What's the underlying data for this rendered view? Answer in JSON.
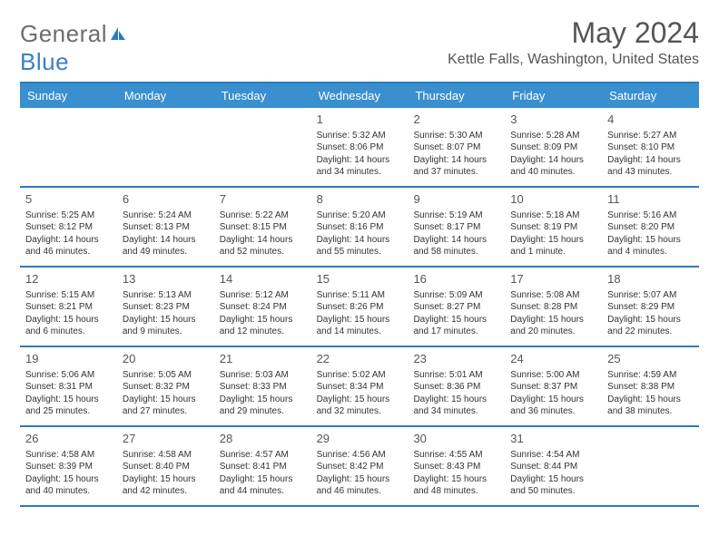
{
  "brand": {
    "part1": "General",
    "part2": "Blue"
  },
  "title": "May 2024",
  "location": "Kettle Falls, Washington, United States",
  "colors": {
    "header_bg": "#3a8fcf",
    "border": "#2b7cbd",
    "text": "#333333",
    "title_text": "#555555",
    "brand_grey": "#6e6e6e",
    "brand_blue": "#3a80c4",
    "page_bg": "#ffffff"
  },
  "day_headers": [
    "Sunday",
    "Monday",
    "Tuesday",
    "Wednesday",
    "Thursday",
    "Friday",
    "Saturday"
  ],
  "weeks": [
    [
      {},
      {},
      {},
      {
        "day": "1",
        "sunrise": "Sunrise: 5:32 AM",
        "sunset": "Sunset: 8:06 PM",
        "daylight1": "Daylight: 14 hours",
        "daylight2": "and 34 minutes."
      },
      {
        "day": "2",
        "sunrise": "Sunrise: 5:30 AM",
        "sunset": "Sunset: 8:07 PM",
        "daylight1": "Daylight: 14 hours",
        "daylight2": "and 37 minutes."
      },
      {
        "day": "3",
        "sunrise": "Sunrise: 5:28 AM",
        "sunset": "Sunset: 8:09 PM",
        "daylight1": "Daylight: 14 hours",
        "daylight2": "and 40 minutes."
      },
      {
        "day": "4",
        "sunrise": "Sunrise: 5:27 AM",
        "sunset": "Sunset: 8:10 PM",
        "daylight1": "Daylight: 14 hours",
        "daylight2": "and 43 minutes."
      }
    ],
    [
      {
        "day": "5",
        "sunrise": "Sunrise: 5:25 AM",
        "sunset": "Sunset: 8:12 PM",
        "daylight1": "Daylight: 14 hours",
        "daylight2": "and 46 minutes."
      },
      {
        "day": "6",
        "sunrise": "Sunrise: 5:24 AM",
        "sunset": "Sunset: 8:13 PM",
        "daylight1": "Daylight: 14 hours",
        "daylight2": "and 49 minutes."
      },
      {
        "day": "7",
        "sunrise": "Sunrise: 5:22 AM",
        "sunset": "Sunset: 8:15 PM",
        "daylight1": "Daylight: 14 hours",
        "daylight2": "and 52 minutes."
      },
      {
        "day": "8",
        "sunrise": "Sunrise: 5:20 AM",
        "sunset": "Sunset: 8:16 PM",
        "daylight1": "Daylight: 14 hours",
        "daylight2": "and 55 minutes."
      },
      {
        "day": "9",
        "sunrise": "Sunrise: 5:19 AM",
        "sunset": "Sunset: 8:17 PM",
        "daylight1": "Daylight: 14 hours",
        "daylight2": "and 58 minutes."
      },
      {
        "day": "10",
        "sunrise": "Sunrise: 5:18 AM",
        "sunset": "Sunset: 8:19 PM",
        "daylight1": "Daylight: 15 hours",
        "daylight2": "and 1 minute."
      },
      {
        "day": "11",
        "sunrise": "Sunrise: 5:16 AM",
        "sunset": "Sunset: 8:20 PM",
        "daylight1": "Daylight: 15 hours",
        "daylight2": "and 4 minutes."
      }
    ],
    [
      {
        "day": "12",
        "sunrise": "Sunrise: 5:15 AM",
        "sunset": "Sunset: 8:21 PM",
        "daylight1": "Daylight: 15 hours",
        "daylight2": "and 6 minutes."
      },
      {
        "day": "13",
        "sunrise": "Sunrise: 5:13 AM",
        "sunset": "Sunset: 8:23 PM",
        "daylight1": "Daylight: 15 hours",
        "daylight2": "and 9 minutes."
      },
      {
        "day": "14",
        "sunrise": "Sunrise: 5:12 AM",
        "sunset": "Sunset: 8:24 PM",
        "daylight1": "Daylight: 15 hours",
        "daylight2": "and 12 minutes."
      },
      {
        "day": "15",
        "sunrise": "Sunrise: 5:11 AM",
        "sunset": "Sunset: 8:26 PM",
        "daylight1": "Daylight: 15 hours",
        "daylight2": "and 14 minutes."
      },
      {
        "day": "16",
        "sunrise": "Sunrise: 5:09 AM",
        "sunset": "Sunset: 8:27 PM",
        "daylight1": "Daylight: 15 hours",
        "daylight2": "and 17 minutes."
      },
      {
        "day": "17",
        "sunrise": "Sunrise: 5:08 AM",
        "sunset": "Sunset: 8:28 PM",
        "daylight1": "Daylight: 15 hours",
        "daylight2": "and 20 minutes."
      },
      {
        "day": "18",
        "sunrise": "Sunrise: 5:07 AM",
        "sunset": "Sunset: 8:29 PM",
        "daylight1": "Daylight: 15 hours",
        "daylight2": "and 22 minutes."
      }
    ],
    [
      {
        "day": "19",
        "sunrise": "Sunrise: 5:06 AM",
        "sunset": "Sunset: 8:31 PM",
        "daylight1": "Daylight: 15 hours",
        "daylight2": "and 25 minutes."
      },
      {
        "day": "20",
        "sunrise": "Sunrise: 5:05 AM",
        "sunset": "Sunset: 8:32 PM",
        "daylight1": "Daylight: 15 hours",
        "daylight2": "and 27 minutes."
      },
      {
        "day": "21",
        "sunrise": "Sunrise: 5:03 AM",
        "sunset": "Sunset: 8:33 PM",
        "daylight1": "Daylight: 15 hours",
        "daylight2": "and 29 minutes."
      },
      {
        "day": "22",
        "sunrise": "Sunrise: 5:02 AM",
        "sunset": "Sunset: 8:34 PM",
        "daylight1": "Daylight: 15 hours",
        "daylight2": "and 32 minutes."
      },
      {
        "day": "23",
        "sunrise": "Sunrise: 5:01 AM",
        "sunset": "Sunset: 8:36 PM",
        "daylight1": "Daylight: 15 hours",
        "daylight2": "and 34 minutes."
      },
      {
        "day": "24",
        "sunrise": "Sunrise: 5:00 AM",
        "sunset": "Sunset: 8:37 PM",
        "daylight1": "Daylight: 15 hours",
        "daylight2": "and 36 minutes."
      },
      {
        "day": "25",
        "sunrise": "Sunrise: 4:59 AM",
        "sunset": "Sunset: 8:38 PM",
        "daylight1": "Daylight: 15 hours",
        "daylight2": "and 38 minutes."
      }
    ],
    [
      {
        "day": "26",
        "sunrise": "Sunrise: 4:58 AM",
        "sunset": "Sunset: 8:39 PM",
        "daylight1": "Daylight: 15 hours",
        "daylight2": "and 40 minutes."
      },
      {
        "day": "27",
        "sunrise": "Sunrise: 4:58 AM",
        "sunset": "Sunset: 8:40 PM",
        "daylight1": "Daylight: 15 hours",
        "daylight2": "and 42 minutes."
      },
      {
        "day": "28",
        "sunrise": "Sunrise: 4:57 AM",
        "sunset": "Sunset: 8:41 PM",
        "daylight1": "Daylight: 15 hours",
        "daylight2": "and 44 minutes."
      },
      {
        "day": "29",
        "sunrise": "Sunrise: 4:56 AM",
        "sunset": "Sunset: 8:42 PM",
        "daylight1": "Daylight: 15 hours",
        "daylight2": "and 46 minutes."
      },
      {
        "day": "30",
        "sunrise": "Sunrise: 4:55 AM",
        "sunset": "Sunset: 8:43 PM",
        "daylight1": "Daylight: 15 hours",
        "daylight2": "and 48 minutes."
      },
      {
        "day": "31",
        "sunrise": "Sunrise: 4:54 AM",
        "sunset": "Sunset: 8:44 PM",
        "daylight1": "Daylight: 15 hours",
        "daylight2": "and 50 minutes."
      },
      {}
    ]
  ]
}
